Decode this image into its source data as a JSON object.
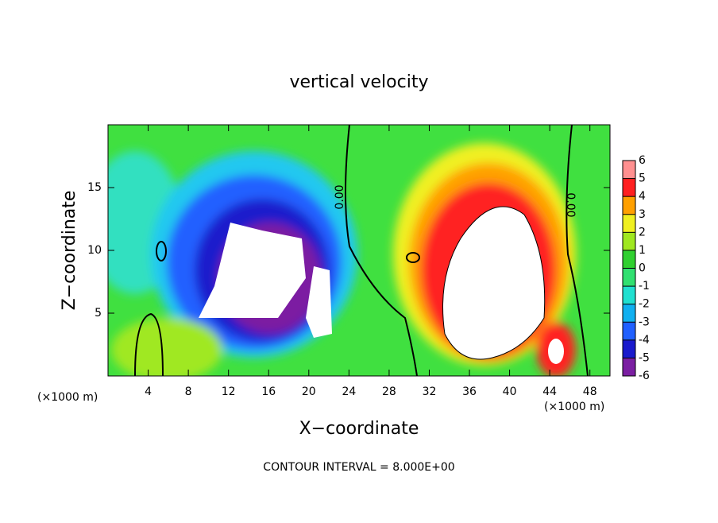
{
  "chart_data": {
    "type": "contour",
    "title": "vertical velocity",
    "xlabel": "X−coordinate",
    "ylabel": "Z−coordinate",
    "xlabel_units": [
      "(×1000 m)",
      "(×1000 m)"
    ],
    "footer": "CONTOUR INTERVAL = 8.000E+00",
    "contour_labels": [
      "0.00",
      "0.00"
    ],
    "xlim": [
      0,
      50
    ],
    "xticks": [
      4,
      8,
      12,
      16,
      20,
      24,
      28,
      32,
      36,
      40,
      44,
      48
    ],
    "ylim": [
      0,
      20
    ],
    "yticks": [
      5,
      10,
      15
    ],
    "colorbar": {
      "lim": [
        -6,
        6
      ],
      "ticks": [
        -6,
        -5,
        -4,
        -3,
        -2,
        -1,
        0,
        1,
        2,
        3,
        4,
        5,
        6
      ],
      "colors": [
        "#7b1fa2",
        "#1a1acc",
        "#2060ff",
        "#10b0f0",
        "#20e0d0",
        "#30e070",
        "#30d030",
        "#a0e820",
        "#f0f020",
        "#ffa000",
        "#ff2020",
        "#ff9090"
      ]
    }
  }
}
